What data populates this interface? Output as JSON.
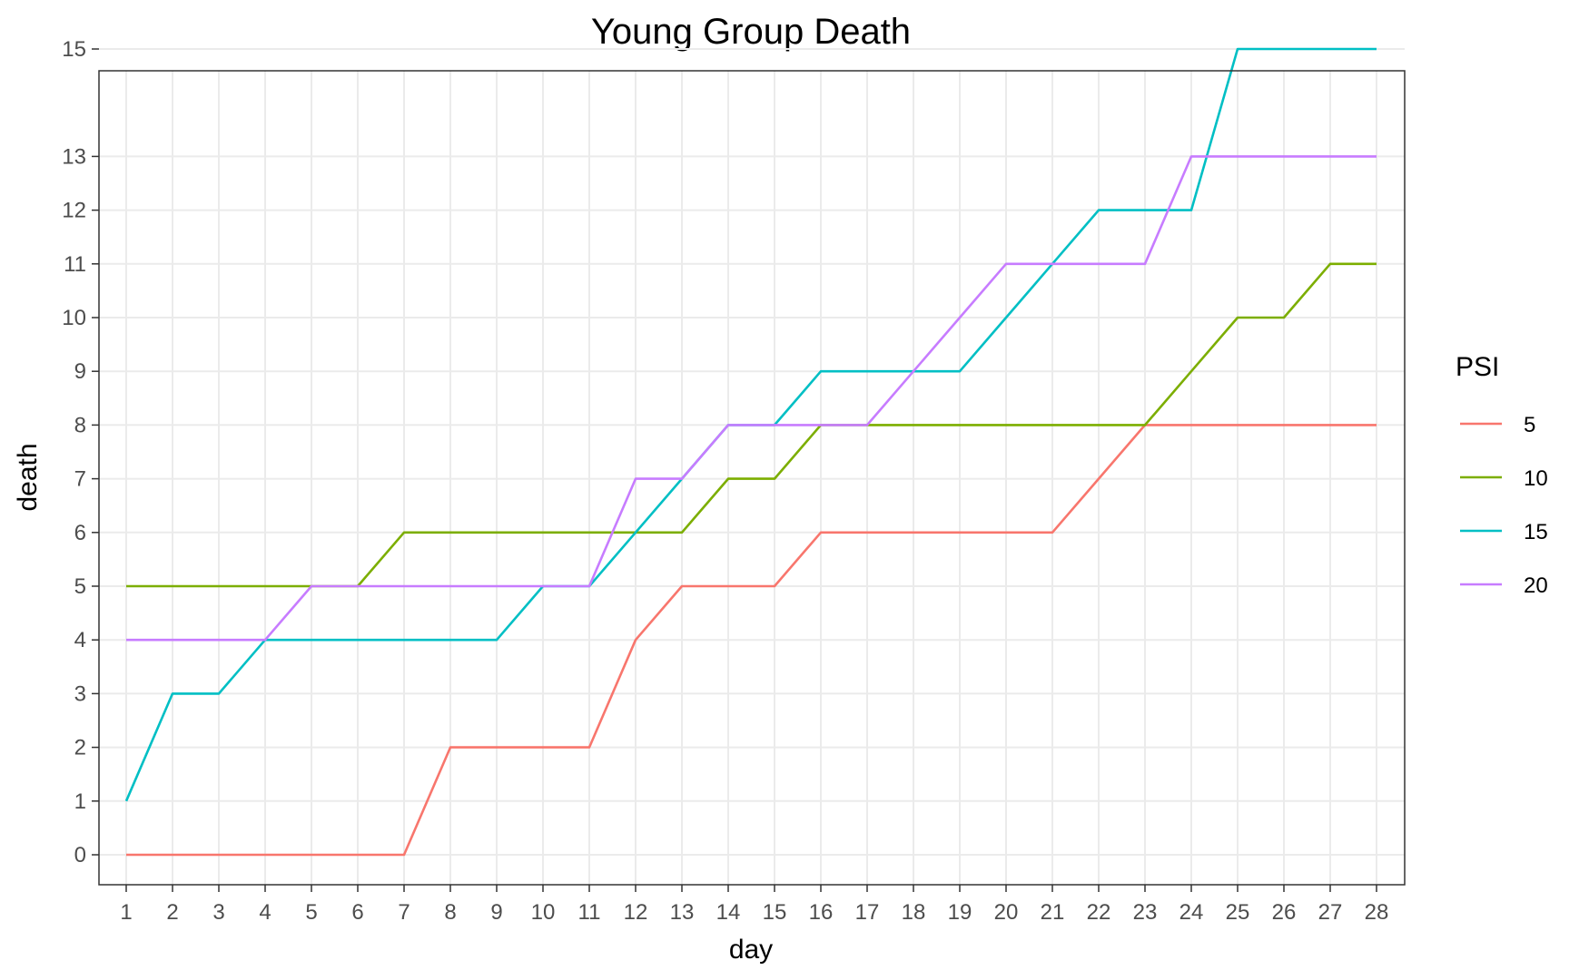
{
  "chart_data": {
    "type": "line",
    "title": "Young Group Death",
    "xlabel": "day",
    "ylabel": "death",
    "x": [
      1,
      2,
      3,
      4,
      5,
      6,
      7,
      8,
      9,
      10,
      11,
      12,
      13,
      14,
      15,
      16,
      17,
      18,
      19,
      20,
      21,
      22,
      23,
      24,
      25,
      26,
      27,
      28
    ],
    "x_ticks": [
      "1",
      "2",
      "3",
      "4",
      "5",
      "6",
      "7",
      "8",
      "9",
      "10",
      "11",
      "12",
      "13",
      "14",
      "15",
      "16",
      "17",
      "18",
      "19",
      "20",
      "21",
      "22",
      "23",
      "24",
      "25",
      "26",
      "27",
      "28"
    ],
    "y_ticks": [
      "0",
      "1",
      "2",
      "3",
      "4",
      "5",
      "6",
      "7",
      "8",
      "9",
      "10",
      "11",
      "12",
      "13",
      "15"
    ],
    "y_ticks_note_values": [
      0,
      1,
      2,
      3,
      4,
      5,
      6,
      7,
      8,
      9,
      10,
      11,
      12,
      13,
      15
    ],
    "legend_title": "PSI",
    "legend_position": "right",
    "grid": true,
    "series": [
      {
        "name": "5",
        "color": "#F8766D",
        "values": [
          0,
          0,
          0,
          0,
          0,
          0,
          0,
          2,
          2,
          2,
          2,
          4,
          5,
          5,
          5,
          6,
          6,
          6,
          6,
          6,
          6,
          7,
          8,
          8,
          8,
          8,
          8,
          8
        ]
      },
      {
        "name": "10",
        "color": "#7CAE00",
        "values": [
          5,
          5,
          5,
          5,
          5,
          5,
          6,
          6,
          6,
          6,
          6,
          6,
          6,
          7,
          7,
          8,
          8,
          8,
          8,
          8,
          8,
          8,
          8,
          9,
          10,
          10,
          11,
          11
        ]
      },
      {
        "name": "15",
        "color": "#00BFC4",
        "values": [
          1,
          3,
          3,
          4,
          4,
          4,
          4,
          4,
          4,
          5,
          5,
          6,
          7,
          8,
          8,
          9,
          9,
          9,
          9,
          10,
          11,
          12,
          12,
          12,
          15,
          15,
          15,
          15
        ]
      },
      {
        "name": "20",
        "color": "#C77CFF",
        "values": [
          4,
          4,
          4,
          4,
          5,
          5,
          5,
          5,
          5,
          5,
          5,
          7,
          7,
          8,
          8,
          8,
          8,
          9,
          10,
          11,
          11,
          11,
          11,
          13,
          13,
          13,
          13,
          13
        ]
      }
    ]
  }
}
